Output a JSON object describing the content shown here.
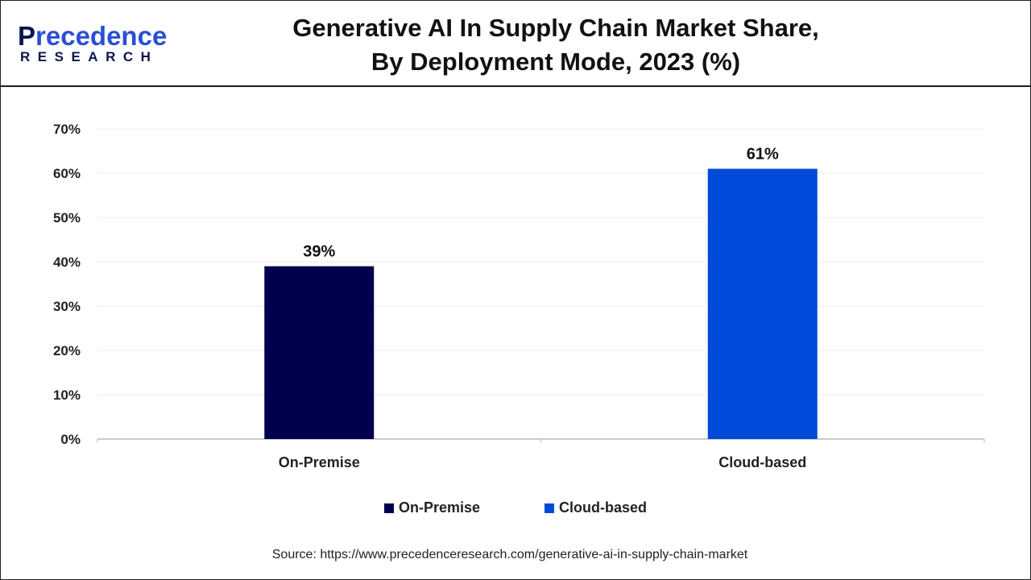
{
  "logo": {
    "line1": "Precedence",
    "line2": "RESEARCH"
  },
  "title": [
    "Generative AI In Supply Chain Market Share,",
    "By Deployment Mode, 2023 (%)"
  ],
  "source": "Source: https://www.precedenceresearch.com/generative-ai-in-supply-chain-market",
  "chart_data": {
    "type": "bar",
    "title": "Generative AI In Supply Chain Market Share, By Deployment Mode, 2023 (%)",
    "categories": [
      "On-Premise",
      "Cloud-based"
    ],
    "values": [
      39,
      61
    ],
    "data_labels": [
      "39%",
      "61%"
    ],
    "colors": [
      "#00004f",
      "#004ad9"
    ],
    "ylim": [
      0,
      70
    ],
    "yticks": [
      "0%",
      "10%",
      "20%",
      "30%",
      "40%",
      "50%",
      "60%",
      "70%"
    ],
    "grid": true,
    "legend": {
      "placement": "bottom",
      "entries": [
        "On-Premise",
        "Cloud-based"
      ]
    }
  }
}
